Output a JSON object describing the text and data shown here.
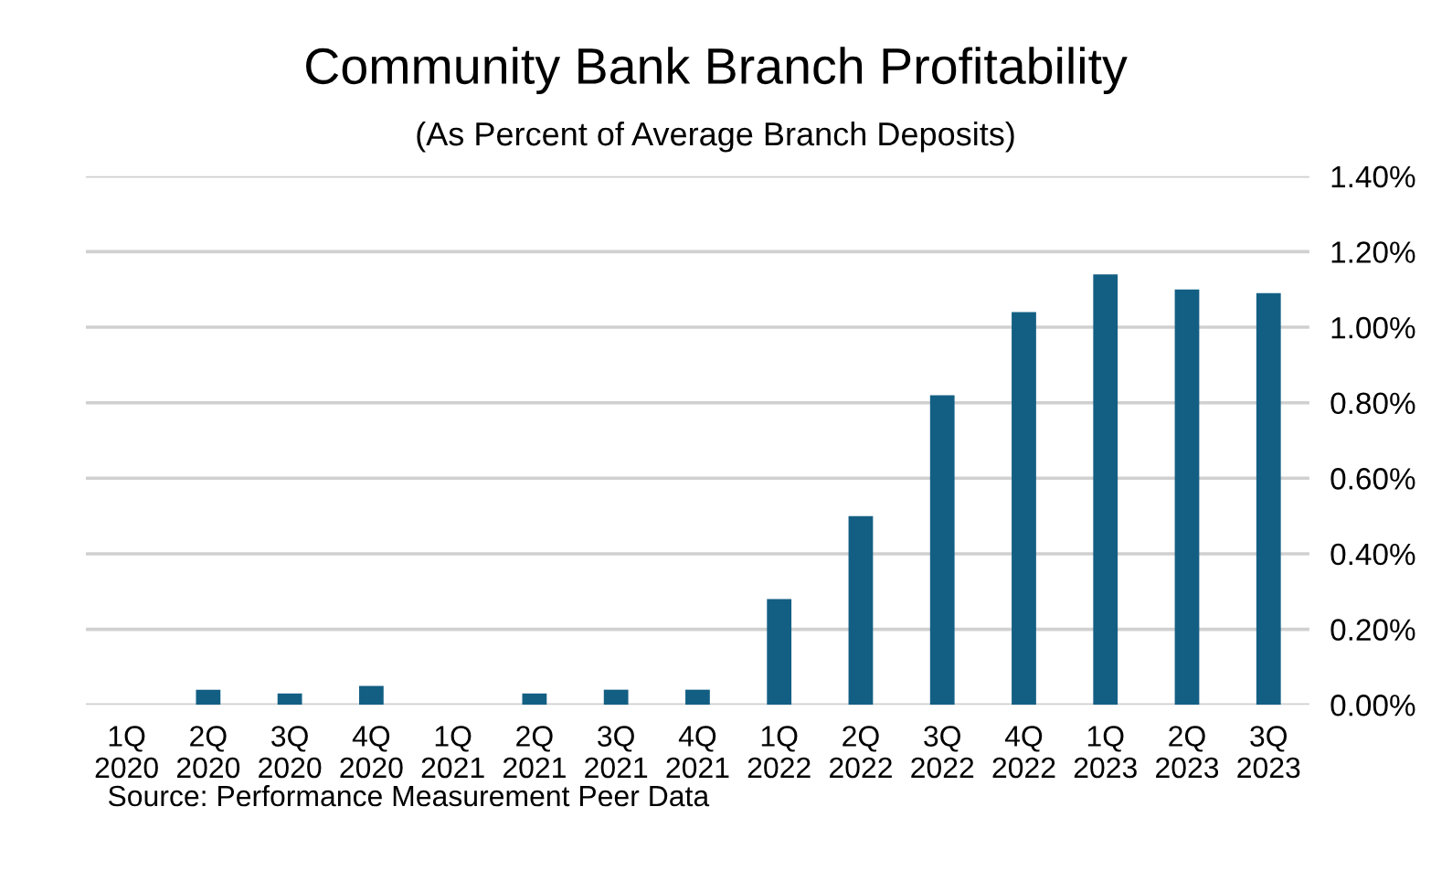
{
  "chart_data": {
    "type": "bar",
    "title": "Community Bank Branch Profitability",
    "subtitle": "(As Percent of Average Branch Deposits)",
    "categories": [
      "1Q\n2020",
      "2Q\n2020",
      "3Q\n2020",
      "4Q\n2020",
      "1Q\n2021",
      "2Q\n2021",
      "3Q\n2021",
      "4Q\n2021",
      "1Q\n2022",
      "2Q\n2022",
      "3Q\n2022",
      "4Q\n2022",
      "1Q\n2023",
      "2Q\n2023",
      "3Q\n2023"
    ],
    "values": [
      0,
      0.04,
      0.03,
      0.05,
      0,
      0.03,
      0.04,
      0.04,
      0.28,
      0.5,
      0.82,
      1.04,
      1.14,
      1.1,
      1.09
    ],
    "color": "#135f84",
    "ylim": [
      0,
      1.4
    ],
    "yticks": [
      {
        "value": 0,
        "label": "0.00%"
      },
      {
        "value": 0.2,
        "label": "0.20%"
      },
      {
        "value": 0.4,
        "label": "0.40%"
      },
      {
        "value": 0.6,
        "label": "0.60%"
      },
      {
        "value": 0.8,
        "label": "0.80%"
      },
      {
        "value": 1.0,
        "label": "1.00%"
      },
      {
        "value": 1.2,
        "label": "1.20%"
      },
      {
        "value": 1.4,
        "label": "1.40%"
      }
    ],
    "grid": "y",
    "annotations": [
      "Source: Performance Measurement Peer Data"
    ]
  }
}
